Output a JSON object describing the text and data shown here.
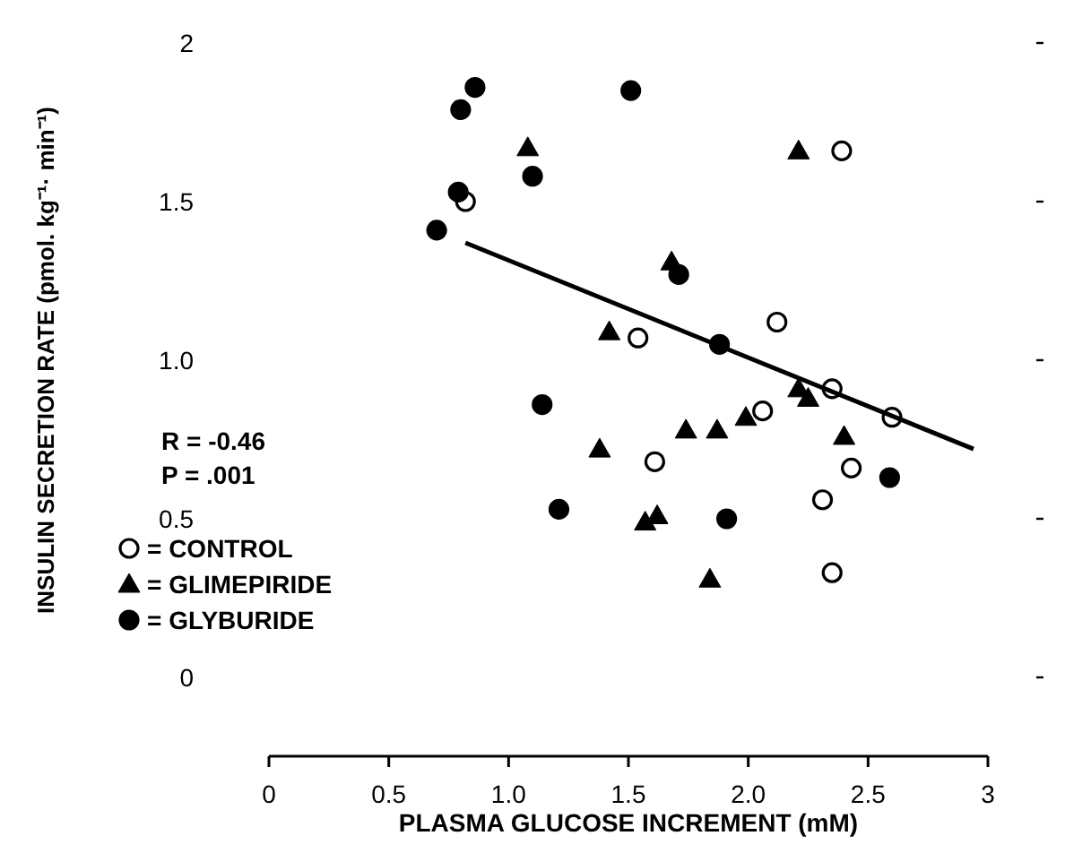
{
  "chart_data": {
    "type": "scatter",
    "xlabel": "PLASMA GLUCOSE INCREMENT (mM)",
    "ylabel": "INSULIN SECRETION RATE (pmol. kg⁻¹· min⁻¹)",
    "xlim": [
      0,
      3
    ],
    "xticks": [
      0,
      0.5,
      {
        "value": 1,
        "label": "1.0"
      },
      1.5,
      {
        "value": 2,
        "label": "2.0"
      },
      2.5,
      3
    ],
    "ylim": [
      0,
      2
    ],
    "yticks": [
      0,
      0.5,
      {
        "value": 1,
        "label": "1.0"
      },
      1.5,
      2
    ],
    "grid": false,
    "legend": "bottom left",
    "annotations": [
      "R = -0.46",
      "P = .001"
    ],
    "series": [
      {
        "name": "= CONTROL",
        "color": "#ffffff",
        "marker": "circle",
        "x": [
          0.82,
          1.54,
          2.39,
          2.12,
          2.35,
          2.6,
          2.06,
          2.43,
          2.31,
          1.61,
          2.35
        ],
        "values": [
          1.5,
          1.07,
          1.66,
          1.12,
          0.91,
          0.82,
          0.84,
          0.66,
          0.56,
          0.68,
          0.33
        ]
      },
      {
        "name": "= GLIMEPIRIDE",
        "color": "#000000",
        "marker": "triangle",
        "x": [
          1.08,
          1.42,
          1.38,
          2.21,
          1.68,
          2.21,
          2.25,
          1.74,
          1.87,
          1.99,
          2.4,
          1.62,
          1.57,
          1.84
        ],
        "values": [
          1.67,
          1.09,
          0.72,
          1.66,
          1.31,
          0.91,
          0.88,
          0.78,
          0.78,
          0.82,
          0.76,
          0.51,
          0.49,
          0.31
        ]
      },
      {
        "name": "= GLYBURIDE",
        "color": "#000000",
        "marker": "circle",
        "x": [
          0.86,
          0.8,
          1.1,
          0.79,
          0.7,
          1.14,
          1.51,
          1.71,
          1.88,
          2.59,
          1.21,
          1.91
        ],
        "values": [
          1.86,
          1.79,
          1.58,
          1.53,
          1.41,
          0.86,
          1.85,
          1.27,
          1.05,
          0.63,
          0.53,
          0.5
        ]
      },
      {
        "type": "line",
        "color": "#000000",
        "marker": "none",
        "line_style": "solid",
        "x": [
          0.82,
          2.94
        ],
        "values": [
          1.37,
          0.72
        ]
      }
    ]
  }
}
